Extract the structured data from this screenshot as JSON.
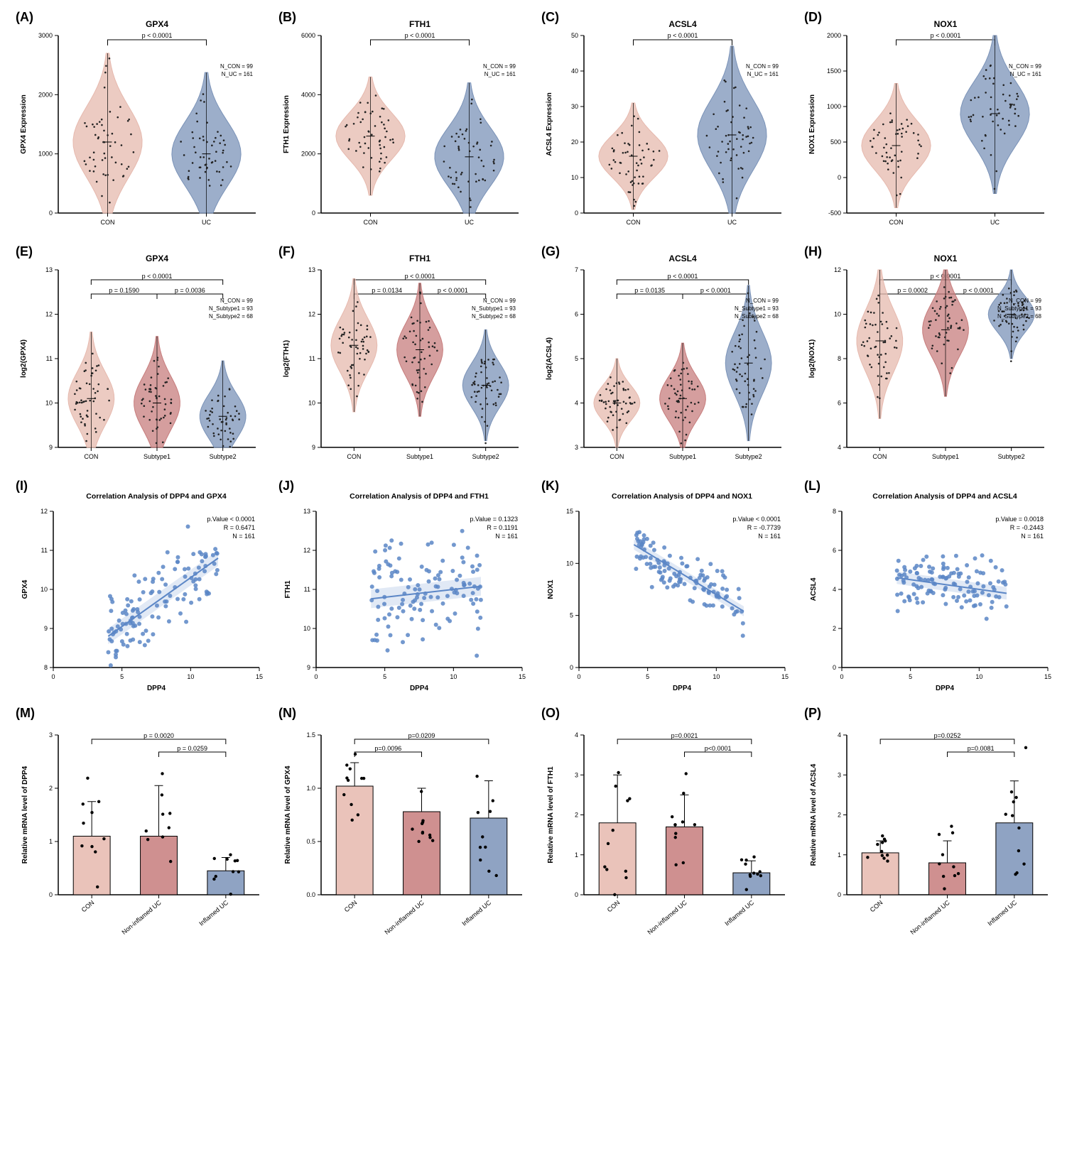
{
  "global": {
    "colors": {
      "con": "#e6b9ae",
      "uc": "#7b93b8",
      "sub1": "#c77d7d",
      "sub2": "#7b93b8",
      "scatter": "#5b86c6",
      "axis": "#000000",
      "grid": "#cccccc",
      "bg": "#ffffff"
    },
    "fonts": {
      "title_pt": 12,
      "axis_pt": 10,
      "tick_pt": 9,
      "anno_pt": 8
    },
    "n_labels_2": "N_CON = 99\nN_UC = 161",
    "n_labels_3": "N_CON = 99\nN_Subtype1 = 93\nN_Subtype2 = 68"
  },
  "row1": {
    "A": {
      "letter": "(A)",
      "title": "GPX4",
      "ylab": "GPX4 Expression",
      "groups": [
        "CON",
        "UC"
      ],
      "group_colors": [
        "#e6b9ae",
        "#7b93b8"
      ],
      "ylim": [
        0,
        3000
      ],
      "ystep": 1000,
      "pval": "p < 0.0001",
      "means": [
        1200,
        1000
      ],
      "spreads": [
        600,
        550
      ]
    },
    "B": {
      "letter": "(B)",
      "title": "FTH1",
      "ylab": "FTH1 Expression",
      "groups": [
        "CON",
        "UC"
      ],
      "group_colors": [
        "#e6b9ae",
        "#7b93b8"
      ],
      "ylim": [
        0,
        6000
      ],
      "ystep": 2000,
      "pval": "p < 0.0001",
      "means": [
        2600,
        1900
      ],
      "spreads": [
        800,
        1000
      ]
    },
    "C": {
      "letter": "(C)",
      "title": "ACSL4",
      "ylab": "ACSL4 Expression",
      "groups": [
        "CON",
        "UC"
      ],
      "group_colors": [
        "#e6b9ae",
        "#7b93b8"
      ],
      "ylim": [
        0,
        50
      ],
      "ystep": 10,
      "pval": "p < 0.0001",
      "means": [
        16,
        22
      ],
      "spreads": [
        6,
        10
      ]
    },
    "D": {
      "letter": "(D)",
      "title": "NOX1",
      "ylab": "NOX1 Expression",
      "groups": [
        "CON",
        "UC"
      ],
      "group_colors": [
        "#e6b9ae",
        "#7b93b8"
      ],
      "ylim": [
        -500,
        2000
      ],
      "ystep": 500,
      "pval": "p < 0.0001",
      "means": [
        450,
        900
      ],
      "spreads": [
        350,
        450
      ]
    }
  },
  "row2": {
    "E": {
      "letter": "(E)",
      "title": "GPX4",
      "ylab": "log2(GPX4)",
      "groups": [
        "CON",
        "Subtype1",
        "Subtype2"
      ],
      "group_colors": [
        "#e6b9ae",
        "#c77d7d",
        "#7b93b8"
      ],
      "ylim": [
        9,
        13
      ],
      "ystep": 1,
      "pvals": [
        [
          "CON",
          "Subtype1",
          "p = 0.1590"
        ],
        [
          "Subtype1",
          "Subtype2",
          "p = 0.0036"
        ],
        [
          "CON",
          "Subtype2",
          "p < 0.0001"
        ]
      ],
      "means": [
        10.1,
        10.0,
        9.7
      ],
      "spreads": [
        0.6,
        0.6,
        0.5
      ]
    },
    "F": {
      "letter": "(F)",
      "title": "FTH1",
      "ylab": "log2(FTH1)",
      "groups": [
        "CON",
        "Subtype1",
        "Subtype2"
      ],
      "group_colors": [
        "#e6b9ae",
        "#c77d7d",
        "#7b93b8"
      ],
      "ylim": [
        9,
        13
      ],
      "ystep": 1,
      "pvals": [
        [
          "CON",
          "Subtype1",
          "p = 0.0134"
        ],
        [
          "Subtype1",
          "Subtype2",
          "p < 0.0001"
        ],
        [
          "CON",
          "Subtype2",
          "p < 0.0001"
        ]
      ],
      "means": [
        11.3,
        11.2,
        10.4
      ],
      "spreads": [
        0.6,
        0.6,
        0.5
      ]
    },
    "G": {
      "letter": "(G)",
      "title": "ACSL4",
      "ylab": "log2(ACSL4)",
      "groups": [
        "CON",
        "Subtype1",
        "Subtype2"
      ],
      "group_colors": [
        "#e6b9ae",
        "#c77d7d",
        "#7b93b8"
      ],
      "ylim": [
        3,
        7
      ],
      "ystep": 1,
      "pvals": [
        [
          "CON",
          "Subtype1",
          "p = 0.0135"
        ],
        [
          "Subtype1",
          "Subtype2",
          "p < 0.0001"
        ],
        [
          "CON",
          "Subtype2",
          "p < 0.0001"
        ]
      ],
      "means": [
        4.0,
        4.1,
        4.9
      ],
      "spreads": [
        0.4,
        0.5,
        0.7
      ]
    },
    "H": {
      "letter": "(H)",
      "title": "NOX1",
      "ylab": "log2(NOX1)",
      "groups": [
        "CON",
        "Subtype1",
        "Subtype2"
      ],
      "group_colors": [
        "#e6b9ae",
        "#c77d7d",
        "#7b93b8"
      ],
      "ylim": [
        4,
        12
      ],
      "ystep": 2,
      "pvals": [
        [
          "CON",
          "Subtype1",
          "p = 0.0002"
        ],
        [
          "Subtype1",
          "Subtype2",
          "p < 0.0001"
        ],
        [
          "CON",
          "Subtype2",
          "p < 0.0001"
        ]
      ],
      "means": [
        8.8,
        9.3,
        10.0
      ],
      "spreads": [
        1.4,
        1.2,
        0.8
      ]
    }
  },
  "row3": {
    "I": {
      "letter": "(I)",
      "title": "Correlation Analysis of DPP4 and GPX4",
      "xlab": "DPP4",
      "ylab": "GPX4",
      "xlim": [
        0,
        15
      ],
      "xstep": 5,
      "ylim": [
        8,
        12
      ],
      "ystep": 1,
      "stats": [
        "p.Value < 0.0001",
        "R = 0.6471",
        "N = 161"
      ],
      "slope": 0.25,
      "intercept": 7.8,
      "cloud_sd_y": 0.5,
      "cloud_x": [
        4,
        12
      ],
      "color": "#5b86c6"
    },
    "J": {
      "letter": "(J)",
      "title": "Correlation Analysis of DPP4 and FTH1",
      "xlab": "DPP4",
      "ylab": "FTH1",
      "xlim": [
        0,
        15
      ],
      "xstep": 5,
      "ylim": [
        9,
        13
      ],
      "ystep": 1,
      "stats": [
        "p.Value = 0.1323",
        "R = 0.1191",
        "N = 161"
      ],
      "slope": 0.04,
      "intercept": 10.6,
      "cloud_sd_y": 0.6,
      "cloud_x": [
        4,
        12
      ],
      "color": "#5b86c6"
    },
    "K": {
      "letter": "(K)",
      "title": "Correlation Analysis of DPP4 and NOX1",
      "xlab": "DPP4",
      "ylab": "NOX1",
      "xlim": [
        0,
        15
      ],
      "xstep": 5,
      "ylim": [
        0,
        15
      ],
      "ystep": 5,
      "stats": [
        "p.Value < 0.0001",
        "R = -0.7739",
        "N = 161"
      ],
      "slope": -0.8,
      "intercept": 15,
      "cloud_sd_y": 1.2,
      "cloud_x": [
        4,
        12
      ],
      "color": "#5b86c6"
    },
    "L": {
      "letter": "(L)",
      "title": "Correlation Analysis of DPP4 and ACSL4",
      "xlab": "DPP4",
      "ylab": "ACSL4",
      "xlim": [
        0,
        15
      ],
      "xstep": 5,
      "ylim": [
        0,
        8
      ],
      "ystep": 2,
      "stats": [
        "p.Value = 0.0018",
        "R = -0.2443",
        "N = 161"
      ],
      "slope": -0.1,
      "intercept": 5.0,
      "cloud_sd_y": 0.8,
      "cloud_x": [
        4,
        12
      ],
      "color": "#5b86c6"
    }
  },
  "row4": {
    "M": {
      "letter": "(M)",
      "ylab": "Relative mRNA level of DPP4",
      "groups": [
        "CON",
        "Non-inflamed UC",
        "Inflamed UC"
      ],
      "group_colors": [
        "#e6b9ae",
        "#c77d7d",
        "#7b93b8"
      ],
      "ylim": [
        0,
        3
      ],
      "ystep": 1,
      "means": [
        1.1,
        1.1,
        0.45
      ],
      "sds": [
        0.65,
        0.95,
        0.25
      ],
      "n_dots": 10,
      "pvals": [
        [
          "CON",
          "Inflamed UC",
          "p = 0.0020"
        ],
        [
          "Non-inflamed UC",
          "Inflamed UC",
          "p = 0.0259"
        ]
      ]
    },
    "N": {
      "letter": "(N)",
      "ylab": "Relative mRNA level of GPX4",
      "groups": [
        "CON",
        "Non-inflamed UC",
        "Inflamed UC"
      ],
      "group_colors": [
        "#e6b9ae",
        "#c77d7d",
        "#7b93b8"
      ],
      "ylim": [
        0,
        1.5
      ],
      "ystep": 0.5,
      "means": [
        1.02,
        0.78,
        0.72
      ],
      "sds": [
        0.22,
        0.22,
        0.35
      ],
      "n_dots": 11,
      "pvals": [
        [
          "CON",
          "Inflamed UC",
          "p=0.0209"
        ],
        [
          "CON",
          "Non-inflamed UC",
          "p=0.0096"
        ]
      ]
    },
    "O": {
      "letter": "(O)",
      "ylab": "Relative mRNA level of FTH1",
      "groups": [
        "CON",
        "Non-inflamed UC",
        "Inflamed UC"
      ],
      "group_colors": [
        "#e6b9ae",
        "#c77d7d",
        "#7b93b8"
      ],
      "ylim": [
        0,
        4
      ],
      "ystep": 1,
      "means": [
        1.8,
        1.7,
        0.55
      ],
      "sds": [
        1.2,
        0.8,
        0.3
      ],
      "n_dots": 11,
      "pvals": [
        [
          "CON",
          "Inflamed UC",
          "p=0.0021"
        ],
        [
          "Non-inflamed UC",
          "Inflamed UC",
          "p<0.0001"
        ]
      ]
    },
    "P": {
      "letter": "(P)",
      "ylab": "Relative mRNA level of ACSL4",
      "groups": [
        "CON",
        "Non-inflamed UC",
        "Inflamed UC"
      ],
      "group_colors": [
        "#e6b9ae",
        "#c77d7d",
        "#7b93b8"
      ],
      "ylim": [
        0,
        4
      ],
      "ystep": 1,
      "means": [
        1.05,
        0.8,
        1.8
      ],
      "sds": [
        0.3,
        0.55,
        1.05
      ],
      "n_dots": 11,
      "pvals": [
        [
          "CON",
          "Inflamed UC",
          "p=0.0252"
        ],
        [
          "Non-inflamed UC",
          "Inflamed UC",
          "p=0.0081"
        ]
      ]
    }
  }
}
